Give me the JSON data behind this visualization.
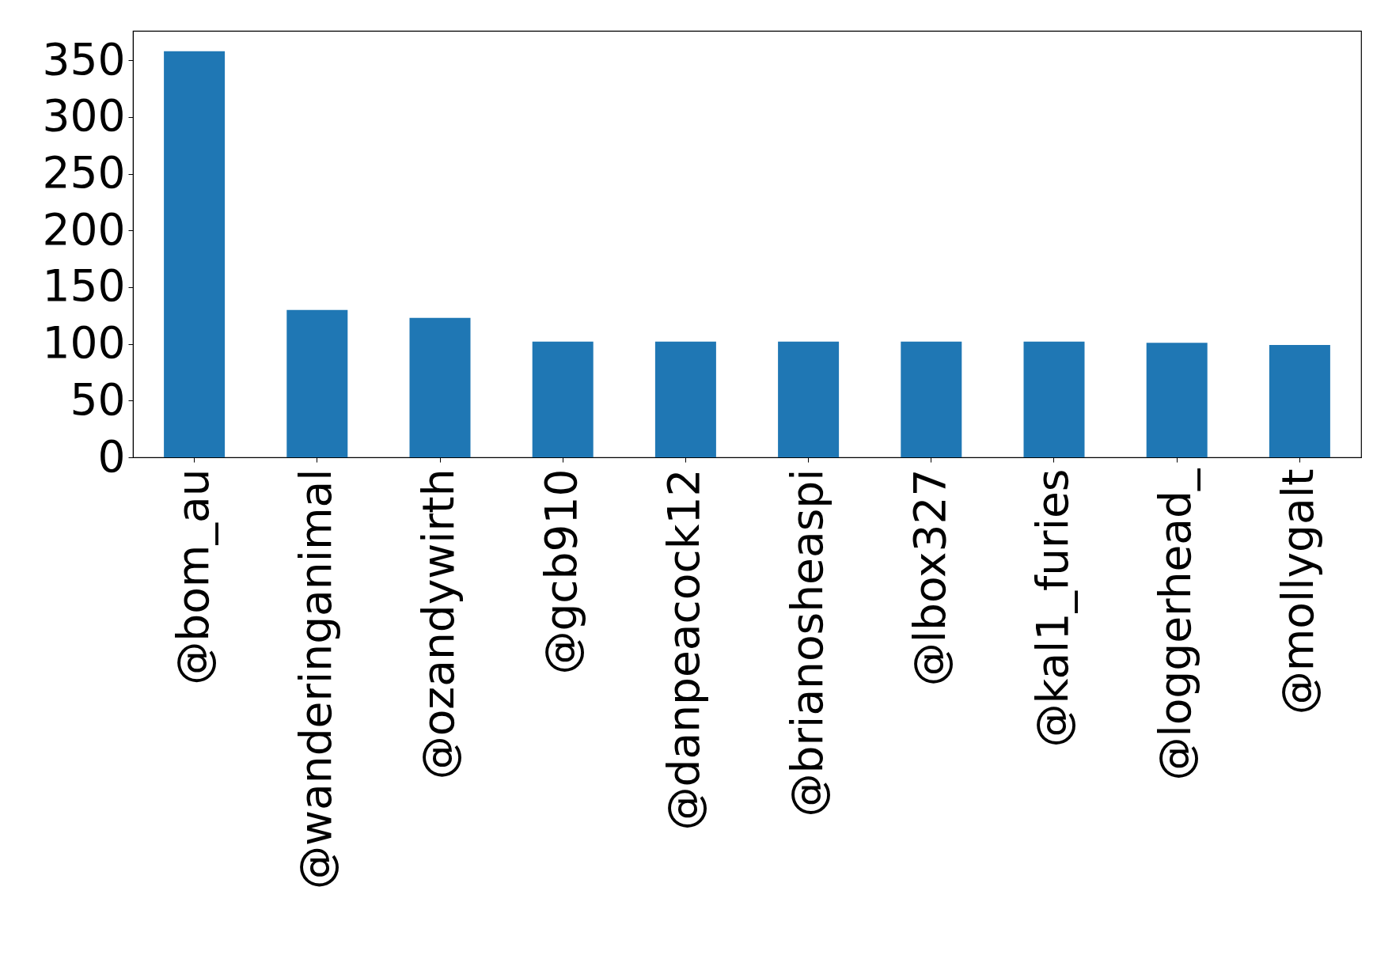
{
  "chart_data": {
    "type": "bar",
    "categories": [
      "@bom_au",
      "@wanderinganimal",
      "@ozandywirth",
      "@gcb910",
      "@danpeacock12",
      "@brianosheaspi",
      "@lbox327",
      "@kal1_furies",
      "@loggerhead_",
      "@mollygalt"
    ],
    "values": [
      358,
      130,
      123,
      102,
      102,
      102,
      102,
      102,
      101,
      99
    ],
    "color": "#1f77b4",
    "ylim": [
      0,
      376
    ],
    "yticks": [
      0,
      50,
      100,
      150,
      200,
      250,
      300,
      350
    ],
    "grid": false
  }
}
